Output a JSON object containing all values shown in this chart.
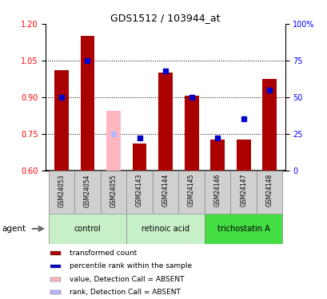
{
  "title": "GDS1512 / 103944_at",
  "samples": [
    "GSM24053",
    "GSM24054",
    "GSM24055",
    "GSM24143",
    "GSM24144",
    "GSM24145",
    "GSM24146",
    "GSM24147",
    "GSM24148"
  ],
  "transformed_count": [
    1.01,
    1.15,
    null,
    0.71,
    1.0,
    0.905,
    0.725,
    0.725,
    0.975
  ],
  "transformed_count_absent": [
    null,
    null,
    0.845,
    null,
    null,
    null,
    null,
    null,
    null
  ],
  "percentile_rank": [
    50,
    75,
    null,
    22,
    68,
    50,
    22,
    35,
    55
  ],
  "percentile_rank_absent": [
    null,
    null,
    25,
    null,
    null,
    null,
    null,
    null,
    null
  ],
  "ylim_left": [
    0.6,
    1.2
  ],
  "ylim_right": [
    0,
    100
  ],
  "right_ticks": [
    0,
    25,
    50,
    75,
    100
  ],
  "left_ticks": [
    0.6,
    0.75,
    0.9,
    1.05,
    1.2
  ],
  "bar_color": "#aa0000",
  "bar_color_absent": "#ffb6c1",
  "rank_color": "#0000cc",
  "rank_color_absent": "#b8b8ff",
  "bar_width": 0.55,
  "marker_size": 5,
  "group_defs": [
    {
      "label": "control",
      "start": 0,
      "end": 2,
      "color": "#c8f0c8"
    },
    {
      "label": "retinoic acid",
      "start": 3,
      "end": 5,
      "color": "#c8f0c8"
    },
    {
      "label": "trichostatin A",
      "start": 6,
      "end": 8,
      "color": "#44dd44"
    }
  ],
  "legend_items": [
    {
      "color": "#aa0000",
      "label": "transformed count"
    },
    {
      "color": "#0000cc",
      "label": "percentile rank within the sample"
    },
    {
      "color": "#ffb6c1",
      "label": "value, Detection Call = ABSENT"
    },
    {
      "color": "#b8b8ff",
      "label": "rank, Detection Call = ABSENT"
    }
  ],
  "agent_label": "agent"
}
